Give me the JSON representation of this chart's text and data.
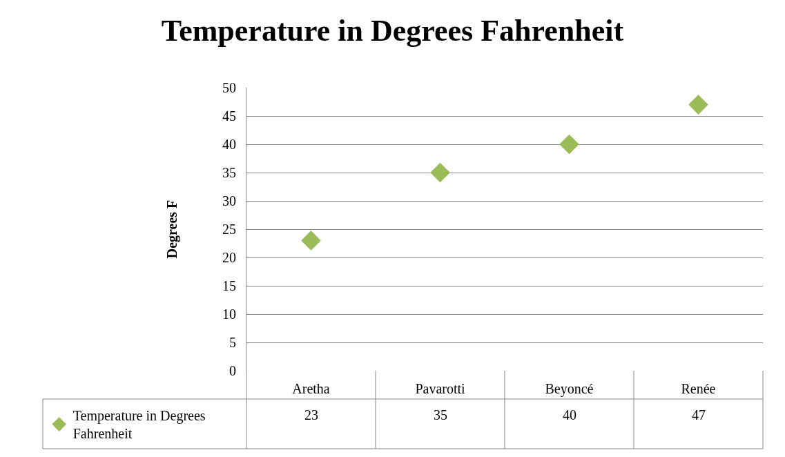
{
  "chart_data": {
    "type": "scatter",
    "title": "Temperature in Degrees Fahrenheit",
    "ylabel": "Degrees F",
    "categories": [
      "Aretha",
      "Pavarotti",
      "Beyoncé",
      "Renée"
    ],
    "series": [
      {
        "name": "Temperature in Degrees Fahrenheit",
        "color": "#9bbb59",
        "values": [
          23,
          35,
          40,
          47
        ]
      }
    ],
    "ylim": [
      0,
      50
    ],
    "yticks": [
      0,
      5,
      10,
      15,
      20,
      25,
      30,
      35,
      40,
      45,
      50
    ],
    "grid": "y",
    "marker": "diamond",
    "legend": "bottom",
    "data_labels": true
  }
}
